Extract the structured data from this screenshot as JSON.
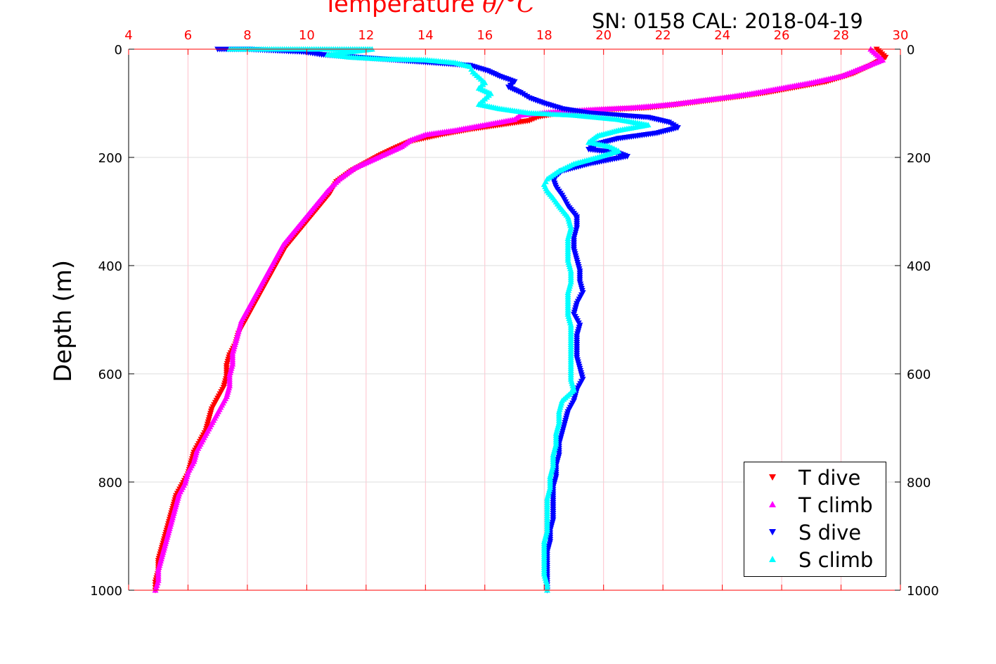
{
  "chart_data": {
    "type": "scatter",
    "title": "Temperature",
    "title_symbol": "θ/°C",
    "subtitle": "SN: 0158  CAL: 2018-04-19",
    "ylabel": "Depth (m)",
    "xlim": [
      4,
      30
    ],
    "ylim": [
      0,
      1000
    ],
    "y_reversed": true,
    "x_ticks": [
      4,
      6,
      8,
      10,
      12,
      14,
      16,
      18,
      20,
      22,
      24,
      26,
      28,
      30
    ],
    "y_ticks": [
      0,
      200,
      400,
      600,
      800,
      1000
    ],
    "grid": true,
    "legend_position": "bottom-right",
    "colors": {
      "T dive": "#ff0000",
      "T climb": "#ff00ff",
      "S dive": "#0000ff",
      "S climb": "#00ffff",
      "axis_top": "#ff0000",
      "grid": "#ffc0cb"
    },
    "series": [
      {
        "name": "T dive",
        "marker": "triangle-down",
        "color": "#ff0000",
        "points": [
          [
            29.2,
            0
          ],
          [
            29.5,
            15
          ],
          [
            29.0,
            30
          ],
          [
            28.4,
            45
          ],
          [
            27.5,
            60
          ],
          [
            26.5,
            70
          ],
          [
            25.5,
            80
          ],
          [
            24.5,
            88
          ],
          [
            23.5,
            95
          ],
          [
            22.5,
            102
          ],
          [
            21.5,
            108
          ],
          [
            20.0,
            112
          ],
          [
            18.5,
            118
          ],
          [
            17.8,
            125
          ],
          [
            17.5,
            132
          ],
          [
            16.5,
            140
          ],
          [
            15.5,
            148
          ],
          [
            14.5,
            158
          ],
          [
            13.5,
            170
          ],
          [
            13.0,
            182
          ],
          [
            12.5,
            195
          ],
          [
            12.0,
            210
          ],
          [
            11.5,
            225
          ],
          [
            11.0,
            245
          ],
          [
            10.8,
            265
          ],
          [
            10.5,
            285
          ],
          [
            10.2,
            305
          ],
          [
            9.9,
            325
          ],
          [
            9.6,
            345
          ],
          [
            9.3,
            365
          ],
          [
            9.1,
            385
          ],
          [
            8.9,
            405
          ],
          [
            8.7,
            425
          ],
          [
            8.5,
            445
          ],
          [
            8.3,
            465
          ],
          [
            8.1,
            485
          ],
          [
            7.9,
            505
          ],
          [
            7.7,
            525
          ],
          [
            7.6,
            545
          ],
          [
            7.4,
            565
          ],
          [
            7.3,
            585
          ],
          [
            7.3,
            605
          ],
          [
            7.2,
            625
          ],
          [
            7.0,
            645
          ],
          [
            6.8,
            665
          ],
          [
            6.7,
            685
          ],
          [
            6.6,
            705
          ],
          [
            6.4,
            725
          ],
          [
            6.2,
            745
          ],
          [
            6.1,
            765
          ],
          [
            6.0,
            785
          ],
          [
            5.8,
            805
          ],
          [
            5.6,
            825
          ],
          [
            5.5,
            845
          ],
          [
            5.4,
            865
          ],
          [
            5.3,
            885
          ],
          [
            5.2,
            905
          ],
          [
            5.1,
            925
          ],
          [
            5.0,
            945
          ],
          [
            5.0,
            965
          ],
          [
            4.9,
            985
          ],
          [
            4.9,
            1000
          ]
        ]
      },
      {
        "name": "T climb",
        "marker": "triangle-up",
        "color": "#ff00ff",
        "points": [
          [
            29.0,
            0
          ],
          [
            29.4,
            20
          ],
          [
            28.7,
            35
          ],
          [
            28.0,
            50
          ],
          [
            27.0,
            62
          ],
          [
            26.0,
            72
          ],
          [
            25.0,
            82
          ],
          [
            24.0,
            90
          ],
          [
            23.0,
            97
          ],
          [
            22.3,
            102
          ],
          [
            21.0,
            108
          ],
          [
            19.5,
            112
          ],
          [
            18.3,
            116
          ],
          [
            17.2,
            122
          ],
          [
            17.0,
            130
          ],
          [
            16.0,
            140
          ],
          [
            15.0,
            150
          ],
          [
            14.0,
            158
          ],
          [
            13.5,
            168
          ],
          [
            13.2,
            180
          ],
          [
            12.6,
            195
          ],
          [
            12.2,
            205
          ],
          [
            11.6,
            220
          ],
          [
            11.1,
            240
          ],
          [
            10.7,
            262
          ],
          [
            10.4,
            282
          ],
          [
            10.1,
            302
          ],
          [
            9.8,
            322
          ],
          [
            9.5,
            342
          ],
          [
            9.2,
            362
          ],
          [
            9.0,
            382
          ],
          [
            8.8,
            402
          ],
          [
            8.6,
            422
          ],
          [
            8.4,
            442
          ],
          [
            8.2,
            462
          ],
          [
            8.0,
            482
          ],
          [
            7.8,
            502
          ],
          [
            7.7,
            522
          ],
          [
            7.6,
            542
          ],
          [
            7.5,
            562
          ],
          [
            7.5,
            582
          ],
          [
            7.4,
            602
          ],
          [
            7.4,
            622
          ],
          [
            7.3,
            642
          ],
          [
            7.1,
            662
          ],
          [
            6.9,
            682
          ],
          [
            6.7,
            702
          ],
          [
            6.5,
            722
          ],
          [
            6.3,
            742
          ],
          [
            6.2,
            762
          ],
          [
            6.0,
            782
          ],
          [
            5.9,
            802
          ],
          [
            5.7,
            822
          ],
          [
            5.6,
            842
          ],
          [
            5.5,
            862
          ],
          [
            5.4,
            882
          ],
          [
            5.3,
            902
          ],
          [
            5.2,
            922
          ],
          [
            5.1,
            942
          ],
          [
            5.0,
            962
          ],
          [
            5.0,
            982
          ],
          [
            4.9,
            1000
          ]
        ]
      },
      {
        "name": "S dive",
        "marker": "triangle-down",
        "color": "#0000ff",
        "points": [
          [
            7.0,
            0
          ],
          [
            7.5,
            0
          ],
          [
            8.0,
            0
          ],
          [
            9.9,
            5
          ],
          [
            10.5,
            10
          ],
          [
            15.5,
            30
          ],
          [
            16.1,
            40
          ],
          [
            16.5,
            50
          ],
          [
            17.0,
            60
          ],
          [
            16.8,
            70
          ],
          [
            17.2,
            80
          ],
          [
            17.5,
            90
          ],
          [
            18.0,
            100
          ],
          [
            18.6,
            110
          ],
          [
            19.5,
            118
          ],
          [
            21.5,
            126
          ],
          [
            22.2,
            135
          ],
          [
            22.5,
            145
          ],
          [
            21.8,
            155
          ],
          [
            20.5,
            165
          ],
          [
            19.8,
            175
          ],
          [
            19.5,
            185
          ],
          [
            20.5,
            192
          ],
          [
            20.8,
            198
          ],
          [
            19.5,
            212
          ],
          [
            18.6,
            225
          ],
          [
            18.3,
            240
          ],
          [
            18.4,
            255
          ],
          [
            18.6,
            270
          ],
          [
            18.8,
            290
          ],
          [
            19.1,
            310
          ],
          [
            19.1,
            330
          ],
          [
            19.0,
            350
          ],
          [
            19.0,
            370
          ],
          [
            19.1,
            390
          ],
          [
            19.2,
            410
          ],
          [
            19.2,
            430
          ],
          [
            19.3,
            450
          ],
          [
            19.1,
            470
          ],
          [
            19.0,
            490
          ],
          [
            19.2,
            510
          ],
          [
            19.1,
            530
          ],
          [
            19.1,
            550
          ],
          [
            19.1,
            570
          ],
          [
            19.2,
            590
          ],
          [
            19.3,
            610
          ],
          [
            19.1,
            630
          ],
          [
            19.0,
            650
          ],
          [
            18.8,
            670
          ],
          [
            18.7,
            690
          ],
          [
            18.6,
            710
          ],
          [
            18.5,
            730
          ],
          [
            18.5,
            750
          ],
          [
            18.4,
            770
          ],
          [
            18.4,
            790
          ],
          [
            18.3,
            810
          ],
          [
            18.3,
            830
          ],
          [
            18.3,
            850
          ],
          [
            18.3,
            870
          ],
          [
            18.2,
            890
          ],
          [
            18.2,
            910
          ],
          [
            18.1,
            930
          ],
          [
            18.1,
            950
          ],
          [
            18.1,
            970
          ],
          [
            18.1,
            990
          ],
          [
            18.1,
            1000
          ]
        ]
      },
      {
        "name": "S climb",
        "marker": "triangle-up",
        "color": "#00ffff",
        "points": [
          [
            7.4,
            0
          ],
          [
            10.1,
            0
          ],
          [
            12.2,
            0
          ],
          [
            10.7,
            10
          ],
          [
            11.5,
            15
          ],
          [
            12.5,
            18
          ],
          [
            14.0,
            20
          ],
          [
            15.0,
            25
          ],
          [
            15.5,
            32
          ],
          [
            15.6,
            42
          ],
          [
            15.8,
            52
          ],
          [
            16.0,
            62
          ],
          [
            15.8,
            72
          ],
          [
            16.2,
            82
          ],
          [
            16.0,
            92
          ],
          [
            15.8,
            102
          ],
          [
            16.5,
            110
          ],
          [
            17.5,
            118
          ],
          [
            19.0,
            122
          ],
          [
            20.5,
            130
          ],
          [
            21.5,
            140
          ],
          [
            20.5,
            150
          ],
          [
            19.8,
            160
          ],
          [
            19.5,
            172
          ],
          [
            20.2,
            180
          ],
          [
            20.5,
            188
          ],
          [
            19.8,
            200
          ],
          [
            19.0,
            212
          ],
          [
            18.5,
            225
          ],
          [
            18.1,
            240
          ],
          [
            18.0,
            250
          ],
          [
            18.1,
            262
          ],
          [
            18.3,
            275
          ],
          [
            18.5,
            290
          ],
          [
            18.8,
            310
          ],
          [
            18.9,
            330
          ],
          [
            18.8,
            350
          ],
          [
            18.8,
            370
          ],
          [
            18.8,
            390
          ],
          [
            18.9,
            410
          ],
          [
            18.9,
            430
          ],
          [
            18.8,
            450
          ],
          [
            18.8,
            470
          ],
          [
            18.8,
            490
          ],
          [
            18.9,
            510
          ],
          [
            18.9,
            530
          ],
          [
            18.9,
            550
          ],
          [
            18.9,
            570
          ],
          [
            18.9,
            590
          ],
          [
            18.9,
            610
          ],
          [
            19.0,
            630
          ],
          [
            18.6,
            650
          ],
          [
            18.5,
            670
          ],
          [
            18.5,
            690
          ],
          [
            18.4,
            710
          ],
          [
            18.4,
            730
          ],
          [
            18.3,
            750
          ],
          [
            18.3,
            770
          ],
          [
            18.2,
            790
          ],
          [
            18.2,
            810
          ],
          [
            18.1,
            830
          ],
          [
            18.1,
            850
          ],
          [
            18.1,
            870
          ],
          [
            18.1,
            890
          ],
          [
            18.0,
            910
          ],
          [
            18.0,
            930
          ],
          [
            18.0,
            950
          ],
          [
            18.0,
            970
          ],
          [
            18.1,
            990
          ],
          [
            18.1,
            1000
          ]
        ]
      }
    ]
  }
}
